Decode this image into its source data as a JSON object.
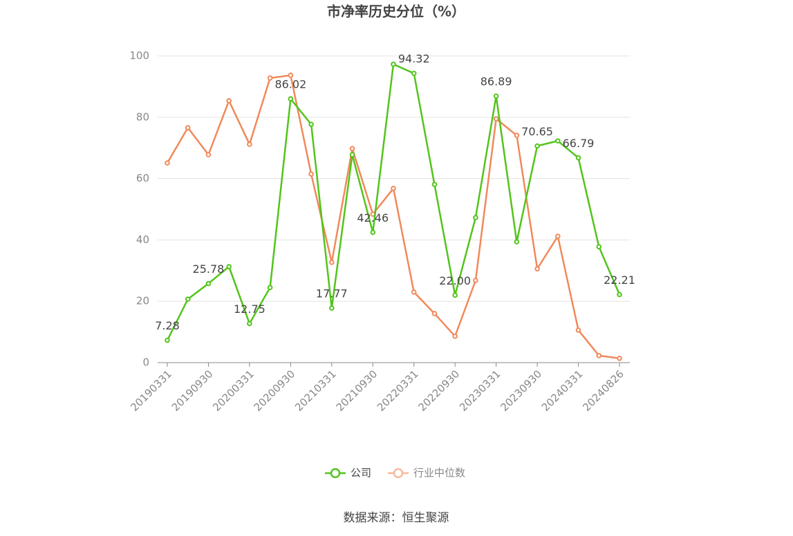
{
  "chart_data": {
    "type": "line",
    "title": "市净率历史分位（%）",
    "categories": [
      "20190331",
      null,
      "20190930",
      null,
      "20200331",
      null,
      "20200930",
      null,
      "20210331",
      null,
      "20210930",
      null,
      "20220331",
      null,
      "20220930",
      null,
      "20230331",
      null,
      "20230930",
      null,
      "20240331",
      null,
      "20240826"
    ],
    "series": [
      {
        "name": "公司",
        "color": "#52c41a",
        "values": [
          7.28,
          20.7,
          25.78,
          31.3,
          12.75,
          24.5,
          86.02,
          77.7,
          17.77,
          67.8,
          42.46,
          97.3,
          94.32,
          58.1,
          22.0,
          47.3,
          86.89,
          39.4,
          70.65,
          72.3,
          66.79,
          37.8,
          22.21
        ],
        "value_labels": [
          "7.28",
          null,
          "25.78",
          null,
          "12.75",
          null,
          "86.02",
          null,
          "17.77",
          null,
          "42.46",
          null,
          "94.32",
          null,
          "22.00",
          null,
          "86.89",
          null,
          "70.65",
          null,
          "66.79",
          null,
          "22.21"
        ]
      },
      {
        "name": "行业中位数",
        "color": "#f0895a",
        "values": [
          65.1,
          76.6,
          67.8,
          85.4,
          71.2,
          92.8,
          93.7,
          61.5,
          32.7,
          69.8,
          48.4,
          56.8,
          23.0,
          16.0,
          8.6,
          26.8,
          79.5,
          74.1,
          30.6,
          41.2,
          10.6,
          2.3,
          1.4
        ]
      }
    ],
    "ylim": [
      0,
      100
    ],
    "yticks": [
      0,
      20,
      40,
      60,
      80,
      100
    ],
    "grid": true,
    "legend": "bottom",
    "source": "数据来源：恒生聚源"
  }
}
